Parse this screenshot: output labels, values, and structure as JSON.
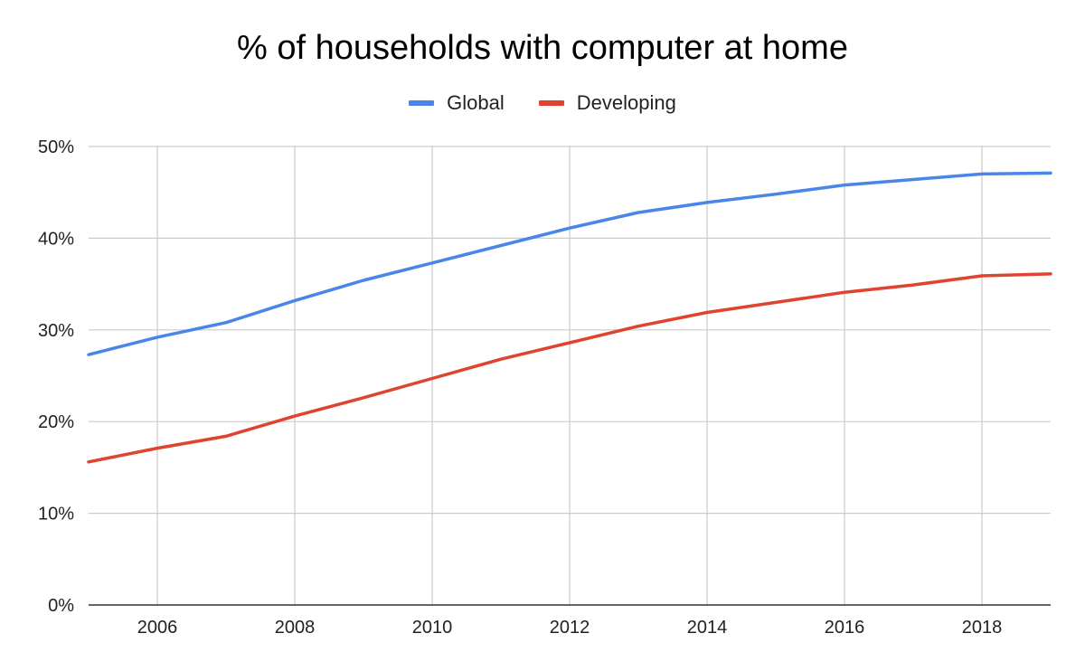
{
  "chart_data": {
    "type": "line",
    "title": "% of households with computer at home",
    "xlabel": "",
    "ylabel": "",
    "x": [
      2005,
      2006,
      2007,
      2008,
      2009,
      2010,
      2011,
      2012,
      2013,
      2014,
      2015,
      2016,
      2017,
      2018,
      2019
    ],
    "xlim": [
      2005,
      2019
    ],
    "ylim": [
      0,
      50
    ],
    "x_ticks": [
      "2006",
      "2008",
      "2010",
      "2012",
      "2014",
      "2016",
      "2018"
    ],
    "y_ticks": [
      "0%",
      "10%",
      "20%",
      "30%",
      "40%",
      "50%"
    ],
    "grid": true,
    "legend_position": "top-center",
    "series": [
      {
        "name": "Global",
        "color": "#4a86e8",
        "values": [
          27.3,
          29.2,
          30.8,
          33.2,
          35.4,
          37.3,
          39.2,
          41.1,
          42.8,
          43.9,
          44.8,
          45.8,
          46.4,
          47.0,
          47.1
        ]
      },
      {
        "name": "Developing",
        "color": "#e0432f",
        "values": [
          15.6,
          17.1,
          18.4,
          20.6,
          22.6,
          24.7,
          26.8,
          28.6,
          30.4,
          31.9,
          33.0,
          34.1,
          34.9,
          35.9,
          36.1
        ]
      }
    ]
  }
}
